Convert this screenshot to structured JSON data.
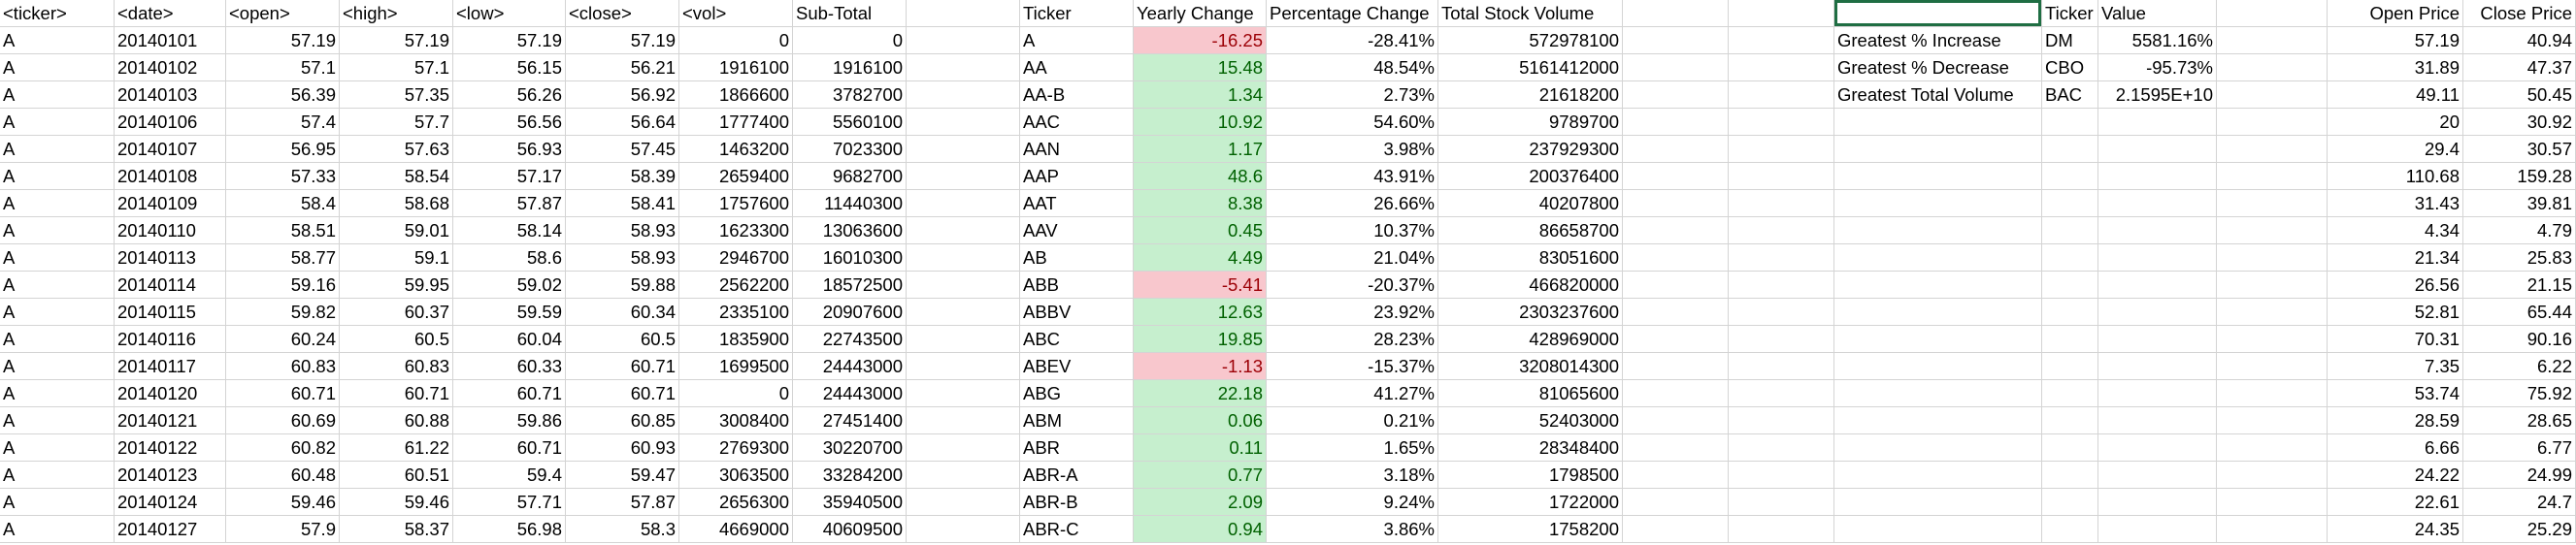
{
  "stock_data": {
    "headers": [
      "<ticker>",
      "<date>",
      "<open>",
      "<high>",
      "<low>",
      "<close>",
      "<vol>",
      "Sub-Total"
    ],
    "rows": [
      [
        "A",
        "20140101",
        "57.19",
        "57.19",
        "57.19",
        "57.19",
        "0",
        "0"
      ],
      [
        "A",
        "20140102",
        "57.1",
        "57.1",
        "56.15",
        "56.21",
        "1916100",
        "1916100"
      ],
      [
        "A",
        "20140103",
        "56.39",
        "57.35",
        "56.26",
        "56.92",
        "1866600",
        "3782700"
      ],
      [
        "A",
        "20140106",
        "57.4",
        "57.7",
        "56.56",
        "56.64",
        "1777400",
        "5560100"
      ],
      [
        "A",
        "20140107",
        "56.95",
        "57.63",
        "56.93",
        "57.45",
        "1463200",
        "7023300"
      ],
      [
        "A",
        "20140108",
        "57.33",
        "58.54",
        "57.17",
        "58.39",
        "2659400",
        "9682700"
      ],
      [
        "A",
        "20140109",
        "58.4",
        "58.68",
        "57.87",
        "58.41",
        "1757600",
        "11440300"
      ],
      [
        "A",
        "20140110",
        "58.51",
        "59.01",
        "58.14",
        "58.93",
        "1623300",
        "13063600"
      ],
      [
        "A",
        "20140113",
        "58.77",
        "59.1",
        "58.6",
        "58.93",
        "2946700",
        "16010300"
      ],
      [
        "A",
        "20140114",
        "59.16",
        "59.95",
        "59.02",
        "59.88",
        "2562200",
        "18572500"
      ],
      [
        "A",
        "20140115",
        "59.82",
        "60.37",
        "59.59",
        "60.34",
        "2335100",
        "20907600"
      ],
      [
        "A",
        "20140116",
        "60.24",
        "60.5",
        "60.04",
        "60.5",
        "1835900",
        "22743500"
      ],
      [
        "A",
        "20140117",
        "60.83",
        "60.83",
        "60.33",
        "60.71",
        "1699500",
        "24443000"
      ],
      [
        "A",
        "20140120",
        "60.71",
        "60.71",
        "60.71",
        "60.71",
        "0",
        "24443000"
      ],
      [
        "A",
        "20140121",
        "60.69",
        "60.88",
        "59.86",
        "60.85",
        "3008400",
        "27451400"
      ],
      [
        "A",
        "20140122",
        "60.82",
        "61.22",
        "60.71",
        "60.93",
        "2769300",
        "30220700"
      ],
      [
        "A",
        "20140123",
        "60.48",
        "60.51",
        "59.4",
        "59.47",
        "3063500",
        "33284200"
      ],
      [
        "A",
        "20140124",
        "59.46",
        "59.46",
        "57.71",
        "57.87",
        "2656300",
        "35940500"
      ],
      [
        "A",
        "20140127",
        "57.9",
        "58.37",
        "56.98",
        "58.3",
        "4669000",
        "40609500"
      ]
    ]
  },
  "summary": {
    "headers": [
      "Ticker",
      "Yearly Change",
      "Percentage Change",
      "Total Stock Volume"
    ],
    "rows": [
      [
        "A",
        "-16.25",
        "-28.41%",
        "572978100"
      ],
      [
        "AA",
        "15.48",
        "48.54%",
        "5161412000"
      ],
      [
        "AA-B",
        "1.34",
        "2.73%",
        "21618200"
      ],
      [
        "AAC",
        "10.92",
        "54.60%",
        "9789700"
      ],
      [
        "AAN",
        "1.17",
        "3.98%",
        "237929300"
      ],
      [
        "AAP",
        "48.6",
        "43.91%",
        "200376400"
      ],
      [
        "AAT",
        "8.38",
        "26.66%",
        "40207800"
      ],
      [
        "AAV",
        "0.45",
        "10.37%",
        "86658700"
      ],
      [
        "AB",
        "4.49",
        "21.04%",
        "83051600"
      ],
      [
        "ABB",
        "-5.41",
        "-20.37%",
        "466820000"
      ],
      [
        "ABBV",
        "12.63",
        "23.92%",
        "2303237600"
      ],
      [
        "ABC",
        "19.85",
        "28.23%",
        "428969000"
      ],
      [
        "ABEV",
        "-1.13",
        "-15.37%",
        "3208014300"
      ],
      [
        "ABG",
        "22.18",
        "41.27%",
        "81065600"
      ],
      [
        "ABM",
        "0.06",
        "0.21%",
        "52403000"
      ],
      [
        "ABR",
        "0.11",
        "1.65%",
        "28348400"
      ],
      [
        "ABR-A",
        "0.77",
        "3.18%",
        "1798500"
      ],
      [
        "ABR-B",
        "2.09",
        "9.24%",
        "1722000"
      ],
      [
        "ABR-C",
        "0.94",
        "3.86%",
        "1758200"
      ]
    ]
  },
  "greatest": {
    "headers": [
      "",
      "Ticker",
      "Value"
    ],
    "rows": [
      [
        "Greatest % Increase",
        "DM",
        "5581.16%"
      ],
      [
        "Greatest % Decrease",
        "CBO",
        "-95.73%"
      ],
      [
        "Greatest Total Volume",
        "BAC",
        "2.1595E+10"
      ]
    ]
  },
  "prices": {
    "headers": [
      "Open Price",
      "Close Price"
    ],
    "rows": [
      [
        "57.19",
        "40.94"
      ],
      [
        "31.89",
        "47.37"
      ],
      [
        "49.11",
        "50.45"
      ],
      [
        "20",
        "30.92"
      ],
      [
        "29.4",
        "30.57"
      ],
      [
        "110.68",
        "159.28"
      ],
      [
        "31.43",
        "39.81"
      ],
      [
        "4.34",
        "4.79"
      ],
      [
        "21.34",
        "25.83"
      ],
      [
        "26.56",
        "21.15"
      ],
      [
        "52.81",
        "65.44"
      ],
      [
        "70.31",
        "90.16"
      ],
      [
        "7.35",
        "6.22"
      ],
      [
        "53.74",
        "75.92"
      ],
      [
        "28.59",
        "28.65"
      ],
      [
        "6.66",
        "6.77"
      ],
      [
        "24.22",
        "24.99"
      ],
      [
        "22.61",
        "24.7"
      ],
      [
        "24.35",
        "25.29"
      ]
    ]
  },
  "colors": {
    "negative_fill": "#f8c7cd",
    "negative_text": "#9c0006",
    "positive_fill": "#c6efce",
    "positive_text": "#006100",
    "gridline": "#d4d4d4",
    "selection": "#1f6e43"
  }
}
